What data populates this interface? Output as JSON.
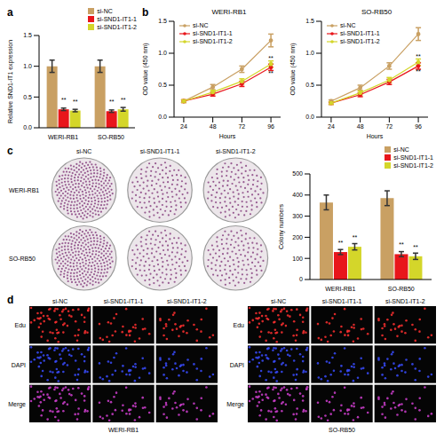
{
  "chart_data": [
    {
      "panel": "a",
      "type": "bar",
      "y_label": "Relative SND1-IT1 expression",
      "categories": [
        "WERI-RB1",
        "SO-RB50"
      ],
      "series": [
        {
          "name": "si-NC",
          "color": "#c9a063",
          "values": [
            1.0,
            1.0
          ],
          "errors": [
            0.1,
            0.1
          ]
        },
        {
          "name": "si-SND1-IT1-1",
          "color": "#e8161b",
          "values": [
            0.3,
            0.27
          ],
          "errors": [
            0.02,
            0.02
          ],
          "annotation": "**"
        },
        {
          "name": "si-SND1-IT1-2",
          "color": "#d4d62a",
          "values": [
            0.28,
            0.3
          ],
          "errors": [
            0.02,
            0.03
          ],
          "annotation": "**"
        }
      ],
      "ylim": [
        0,
        1.5
      ],
      "yticks": [
        {
          "value": 0,
          "label": "0.0"
        },
        {
          "value": 0.5,
          "label": "0.5"
        },
        {
          "value": 1,
          "label": "1.0"
        },
        {
          "value": 1.5,
          "label": "1.5"
        }
      ],
      "legend": "upper right",
      "grid": false
    },
    {
      "panel": "b",
      "type": "line",
      "title": "WERI-RB1",
      "x_label": "Hours",
      "y_label": "OD value (450 nm)",
      "x": [
        24,
        48,
        72,
        96
      ],
      "xlim": [
        16,
        104
      ],
      "xticks": [
        24,
        48,
        72,
        96
      ],
      "ylim": [
        0,
        1.5
      ],
      "yticks": [
        {
          "value": 0,
          "label": "0.0"
        },
        {
          "value": 0.5,
          "label": "0.5"
        },
        {
          "value": 1,
          "label": "1.0"
        },
        {
          "value": 1.5,
          "label": "1.5"
        }
      ],
      "series": [
        {
          "name": "si-NC",
          "color": "#c9a063",
          "values": [
            0.25,
            0.47,
            0.75,
            1.2
          ],
          "errors": [
            0.02,
            0.04,
            0.05,
            0.1
          ]
        },
        {
          "name": "si-SND1-IT1-1",
          "color": "#e8161b",
          "values": [
            0.25,
            0.36,
            0.52,
            0.78
          ],
          "errors": [
            0.02,
            0.03,
            0.04,
            0.05
          ],
          "annotations": [
            null,
            null,
            null,
            "**"
          ]
        },
        {
          "name": "si-SND1-IT1-2",
          "color": "#d4d62a",
          "values": [
            0.25,
            0.39,
            0.56,
            0.83
          ],
          "errors": [
            0.02,
            0.03,
            0.04,
            0.05
          ],
          "annotations": [
            null,
            null,
            null,
            "**"
          ]
        }
      ],
      "marker": "circle",
      "legend": "upper left",
      "grid": false
    },
    {
      "type": "line",
      "title": "SO-RB50",
      "x_label": "Hours",
      "y_label": "OD value (450 nm)",
      "x": [
        24,
        48,
        72,
        96
      ],
      "xlim": [
        16,
        104
      ],
      "xticks": [
        24,
        48,
        72,
        96
      ],
      "ylim": [
        0,
        1.5
      ],
      "yticks": [
        {
          "value": 0,
          "label": "0.0"
        },
        {
          "value": 0.5,
          "label": "0.5"
        },
        {
          "value": 1,
          "label": "1.0"
        },
        {
          "value": 1.5,
          "label": "1.5"
        }
      ],
      "series": [
        {
          "name": "si-NC",
          "color": "#c9a063",
          "values": [
            0.25,
            0.46,
            0.8,
            1.3
          ],
          "errors": [
            0.02,
            0.04,
            0.05,
            0.1
          ]
        },
        {
          "name": "si-SND1-IT1-1",
          "color": "#e8161b",
          "values": [
            0.22,
            0.35,
            0.55,
            0.8
          ],
          "errors": [
            0.02,
            0.03,
            0.04,
            0.05
          ],
          "annotations": [
            null,
            null,
            null,
            "**"
          ]
        },
        {
          "name": "si-SND1-IT1-2",
          "color": "#d4d62a",
          "values": [
            0.22,
            0.38,
            0.58,
            0.86
          ],
          "errors": [
            0.02,
            0.03,
            0.04,
            0.05
          ],
          "annotations": [
            null,
            null,
            null,
            "**"
          ]
        }
      ],
      "marker": "circle",
      "legend": "upper left",
      "grid": false
    },
    {
      "panel": "c",
      "type": "bar",
      "y_label": "Colony numbers",
      "categories": [
        "WERI-RB1",
        "SO-RB50"
      ],
      "series": [
        {
          "name": "si-NC",
          "color": "#c9a063",
          "values": [
            365,
            385
          ],
          "errors": [
            35,
            35
          ]
        },
        {
          "name": "si-SND1-IT1-1",
          "color": "#e8161b",
          "values": [
            130,
            120
          ],
          "errors": [
            12,
            12
          ],
          "annotation": "**"
        },
        {
          "name": "si-SND1-IT1-2",
          "color": "#d4d62a",
          "values": [
            155,
            110
          ],
          "errors": [
            15,
            15
          ],
          "annotation": "**"
        }
      ],
      "ylim": [
        0,
        500
      ],
      "yticks": [
        0,
        100,
        200,
        300,
        400,
        500
      ],
      "legend": "upper right",
      "grid": false
    }
  ],
  "images": {
    "c": {
      "columns": [
        "si-NC",
        "si-SND1-IT1-1",
        "si-SND1-IT1-2"
      ],
      "rows": [
        "WERI-RB1",
        "SO-RB50"
      ]
    },
    "d": {
      "panel": "d",
      "grids": [
        {
          "cell_line": "WERI-RB1",
          "columns": [
            "si-NC",
            "si-SND1-IT1-1",
            "si-SND1-IT1-2"
          ],
          "rows": [
            "Edu",
            "DAPI",
            "Merge"
          ]
        },
        {
          "cell_line": "SO-RB50",
          "columns": [
            "si-NC",
            "si-SND1-IT1-1",
            "si-SND1-IT1-2"
          ],
          "rows": [
            "Edu",
            "DAPI",
            "Merge"
          ]
        }
      ]
    }
  }
}
